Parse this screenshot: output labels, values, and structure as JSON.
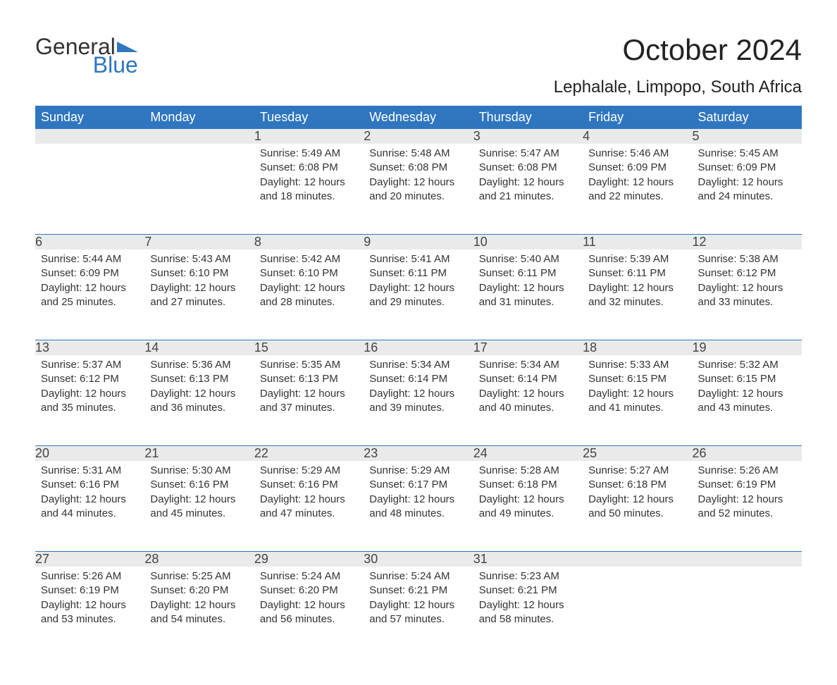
{
  "brand": {
    "general": "General",
    "blue": "Blue",
    "brand_color": "#2f76bf"
  },
  "title": "October 2024",
  "location": "Lephalale, Limpopo, South Africa",
  "colors": {
    "header_bg": "#2f76bf",
    "header_text": "#ffffff",
    "daynum_bg": "#eaeaea",
    "week_sep": "#2f76bf",
    "body_text": "#333333",
    "page_bg": "#ffffff"
  },
  "typography": {
    "title_fontsize": 42,
    "location_fontsize": 24,
    "dayheader_fontsize": 18,
    "daynum_fontsize": 18,
    "body_fontsize": 15
  },
  "layout": {
    "columns": 7,
    "rows": 5
  },
  "day_headers": [
    "Sunday",
    "Monday",
    "Tuesday",
    "Wednesday",
    "Thursday",
    "Friday",
    "Saturday"
  ],
  "labels": {
    "sunrise": "Sunrise:",
    "sunset": "Sunset:",
    "daylight": "Daylight:"
  },
  "weeks": [
    [
      null,
      null,
      {
        "n": "1",
        "sunrise": "5:49 AM",
        "sunset": "6:08 PM",
        "daylight": "12 hours and 18 minutes."
      },
      {
        "n": "2",
        "sunrise": "5:48 AM",
        "sunset": "6:08 PM",
        "daylight": "12 hours and 20 minutes."
      },
      {
        "n": "3",
        "sunrise": "5:47 AM",
        "sunset": "6:08 PM",
        "daylight": "12 hours and 21 minutes."
      },
      {
        "n": "4",
        "sunrise": "5:46 AM",
        "sunset": "6:09 PM",
        "daylight": "12 hours and 22 minutes."
      },
      {
        "n": "5",
        "sunrise": "5:45 AM",
        "sunset": "6:09 PM",
        "daylight": "12 hours and 24 minutes."
      }
    ],
    [
      {
        "n": "6",
        "sunrise": "5:44 AM",
        "sunset": "6:09 PM",
        "daylight": "12 hours and 25 minutes."
      },
      {
        "n": "7",
        "sunrise": "5:43 AM",
        "sunset": "6:10 PM",
        "daylight": "12 hours and 27 minutes."
      },
      {
        "n": "8",
        "sunrise": "5:42 AM",
        "sunset": "6:10 PM",
        "daylight": "12 hours and 28 minutes."
      },
      {
        "n": "9",
        "sunrise": "5:41 AM",
        "sunset": "6:11 PM",
        "daylight": "12 hours and 29 minutes."
      },
      {
        "n": "10",
        "sunrise": "5:40 AM",
        "sunset": "6:11 PM",
        "daylight": "12 hours and 31 minutes."
      },
      {
        "n": "11",
        "sunrise": "5:39 AM",
        "sunset": "6:11 PM",
        "daylight": "12 hours and 32 minutes."
      },
      {
        "n": "12",
        "sunrise": "5:38 AM",
        "sunset": "6:12 PM",
        "daylight": "12 hours and 33 minutes."
      }
    ],
    [
      {
        "n": "13",
        "sunrise": "5:37 AM",
        "sunset": "6:12 PM",
        "daylight": "12 hours and 35 minutes."
      },
      {
        "n": "14",
        "sunrise": "5:36 AM",
        "sunset": "6:13 PM",
        "daylight": "12 hours and 36 minutes."
      },
      {
        "n": "15",
        "sunrise": "5:35 AM",
        "sunset": "6:13 PM",
        "daylight": "12 hours and 37 minutes."
      },
      {
        "n": "16",
        "sunrise": "5:34 AM",
        "sunset": "6:14 PM",
        "daylight": "12 hours and 39 minutes."
      },
      {
        "n": "17",
        "sunrise": "5:34 AM",
        "sunset": "6:14 PM",
        "daylight": "12 hours and 40 minutes."
      },
      {
        "n": "18",
        "sunrise": "5:33 AM",
        "sunset": "6:15 PM",
        "daylight": "12 hours and 41 minutes."
      },
      {
        "n": "19",
        "sunrise": "5:32 AM",
        "sunset": "6:15 PM",
        "daylight": "12 hours and 43 minutes."
      }
    ],
    [
      {
        "n": "20",
        "sunrise": "5:31 AM",
        "sunset": "6:16 PM",
        "daylight": "12 hours and 44 minutes."
      },
      {
        "n": "21",
        "sunrise": "5:30 AM",
        "sunset": "6:16 PM",
        "daylight": "12 hours and 45 minutes."
      },
      {
        "n": "22",
        "sunrise": "5:29 AM",
        "sunset": "6:16 PM",
        "daylight": "12 hours and 47 minutes."
      },
      {
        "n": "23",
        "sunrise": "5:29 AM",
        "sunset": "6:17 PM",
        "daylight": "12 hours and 48 minutes."
      },
      {
        "n": "24",
        "sunrise": "5:28 AM",
        "sunset": "6:18 PM",
        "daylight": "12 hours and 49 minutes."
      },
      {
        "n": "25",
        "sunrise": "5:27 AM",
        "sunset": "6:18 PM",
        "daylight": "12 hours and 50 minutes."
      },
      {
        "n": "26",
        "sunrise": "5:26 AM",
        "sunset": "6:19 PM",
        "daylight": "12 hours and 52 minutes."
      }
    ],
    [
      {
        "n": "27",
        "sunrise": "5:26 AM",
        "sunset": "6:19 PM",
        "daylight": "12 hours and 53 minutes."
      },
      {
        "n": "28",
        "sunrise": "5:25 AM",
        "sunset": "6:20 PM",
        "daylight": "12 hours and 54 minutes."
      },
      {
        "n": "29",
        "sunrise": "5:24 AM",
        "sunset": "6:20 PM",
        "daylight": "12 hours and 56 minutes."
      },
      {
        "n": "30",
        "sunrise": "5:24 AM",
        "sunset": "6:21 PM",
        "daylight": "12 hours and 57 minutes."
      },
      {
        "n": "31",
        "sunrise": "5:23 AM",
        "sunset": "6:21 PM",
        "daylight": "12 hours and 58 minutes."
      },
      null,
      null
    ]
  ]
}
